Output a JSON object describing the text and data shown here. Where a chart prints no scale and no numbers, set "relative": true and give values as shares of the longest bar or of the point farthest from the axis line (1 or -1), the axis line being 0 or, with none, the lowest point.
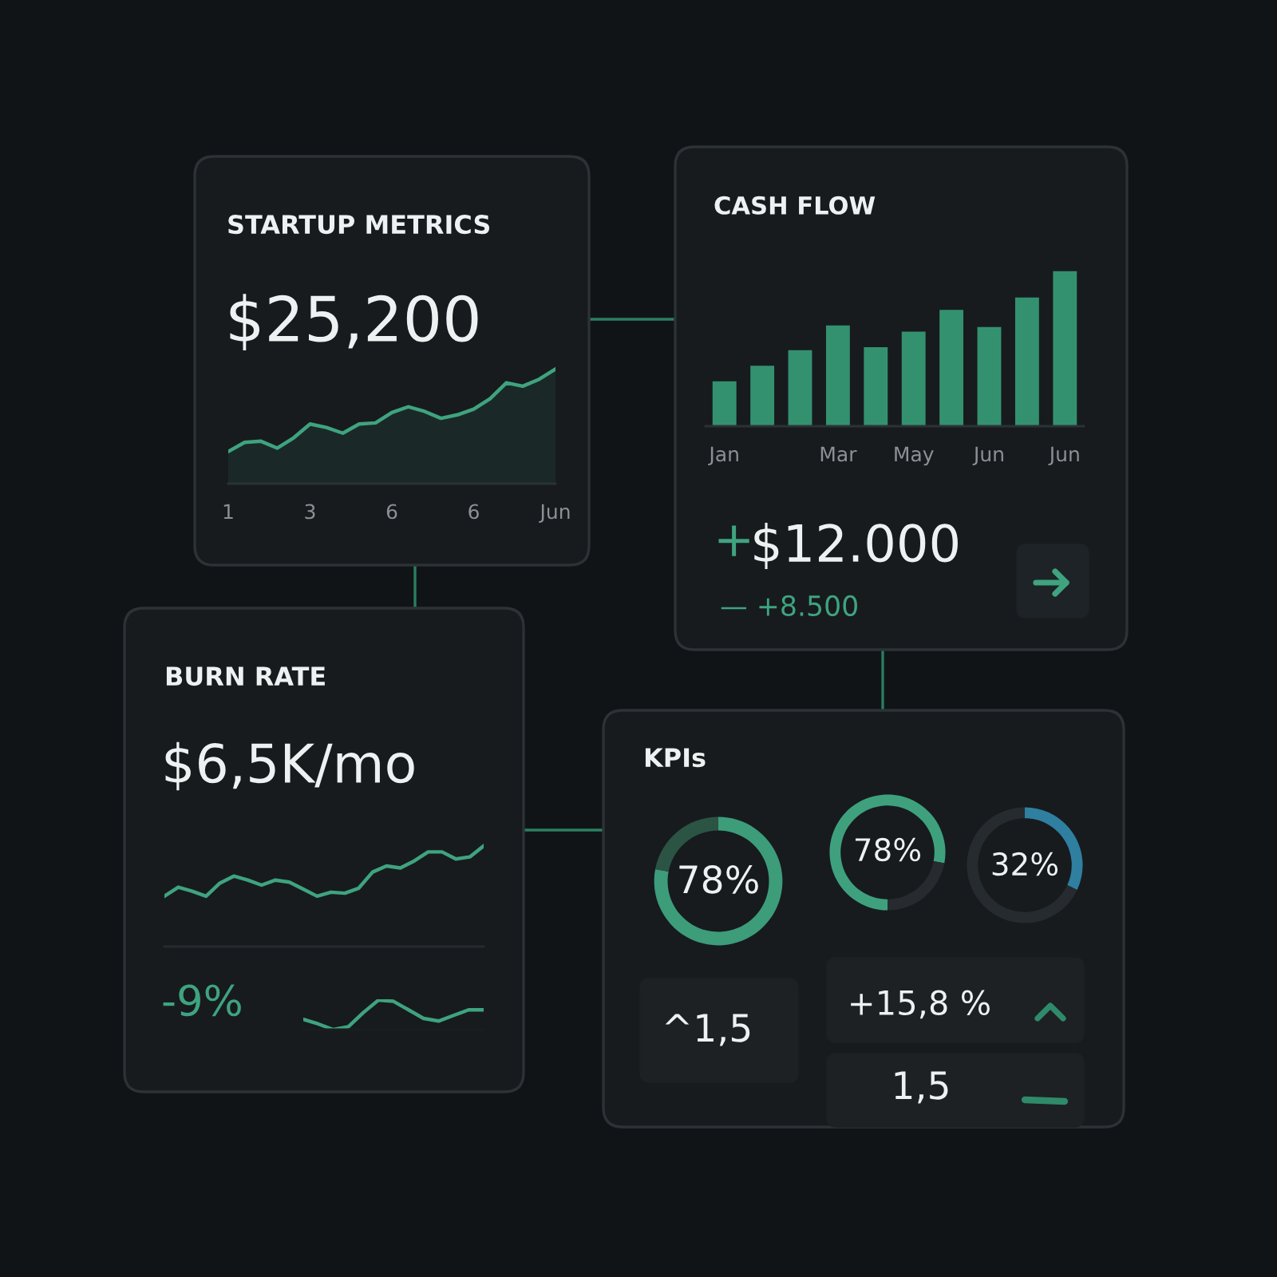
{
  "chart_data": [
    {
      "type": "area",
      "title": "STARTUP METRICS",
      "annotations": [
        "$25,200"
      ],
      "categories": [
        "1",
        null,
        null,
        null,
        null,
        "3",
        null,
        null,
        null,
        null,
        "6",
        null,
        null,
        null,
        null,
        "6",
        null,
        null,
        null,
        null,
        "Jun"
      ],
      "values": [
        0.28,
        0.36,
        0.37,
        0.31,
        0.4,
        0.52,
        0.49,
        0.44,
        0.52,
        0.53,
        0.62,
        0.67,
        0.63,
        0.57,
        0.6,
        0.65,
        0.74,
        0.88,
        0.85,
        0.91,
        1.0
      ],
      "color": "#3fa37f",
      "relative": true,
      "tick_labels": "x"
    },
    {
      "type": "bar",
      "title": "CASH FLOW",
      "annotations": [
        "+",
        "$12.000",
        "— +8.500"
      ],
      "categories": [
        "Jan",
        null,
        null,
        "Mar",
        null,
        "May",
        null,
        "Jun",
        null,
        "Jun"
      ],
      "values": [
        0.29,
        0.39,
        0.49,
        0.65,
        0.51,
        0.61,
        0.75,
        0.64,
        0.83,
        1.0
      ],
      "color": "#34916f",
      "relative": true,
      "tick_labels": "x"
    },
    {
      "type": "line",
      "title": "BURN RATE",
      "annotations": [
        "$6,5K/mo"
      ],
      "categories": [
        null,
        null,
        null,
        null,
        null,
        null,
        null,
        null,
        null,
        null,
        null,
        null,
        null,
        null,
        null,
        null,
        null,
        null,
        null,
        null,
        null,
        null,
        null,
        null
      ],
      "values": [
        0.5,
        0.59,
        0.55,
        0.5,
        0.63,
        0.7,
        0.66,
        0.61,
        0.66,
        0.64,
        0.57,
        0.5,
        0.54,
        0.53,
        0.58,
        0.74,
        0.8,
        0.78,
        0.85,
        0.94,
        0.94,
        0.87,
        0.89,
        1.0
      ],
      "color": "#3fa37f",
      "relative": true,
      "tick_labels": false
    },
    {
      "type": "line",
      "annotations": [
        "-9%"
      ],
      "categories": [
        null,
        null,
        null,
        null,
        null,
        null,
        null,
        null,
        null,
        null,
        null,
        null,
        null
      ],
      "values": [
        0.35,
        0.19,
        0,
        0.1,
        0.58,
        1.0,
        0.96,
        0.67,
        0.38,
        0.29,
        0.48,
        0.67,
        0.67
      ],
      "color": "#3fa37f",
      "relative": true,
      "tick_labels": false
    },
    {
      "type": "donut",
      "title": "KPIs",
      "annotations": [
        "78%",
        "^1,5",
        "+15,8 %",
        "1,5"
      ],
      "categories": [
        null,
        null
      ],
      "values": [
        78,
        22
      ],
      "colors": [
        "#3d9c7a",
        "#2b5445"
      ]
    },
    {
      "type": "donut",
      "annotations": [
        "78%"
      ],
      "categories": [
        null,
        null
      ],
      "values": [
        78,
        22
      ],
      "colors": [
        "#3fa07e",
        "#262b2f"
      ]
    },
    {
      "type": "donut",
      "annotations": [
        "32%"
      ],
      "categories": [
        null,
        null
      ],
      "values": [
        32,
        68
      ],
      "colors": [
        "#2f7fa0",
        "#262b2f"
      ]
    }
  ]
}
